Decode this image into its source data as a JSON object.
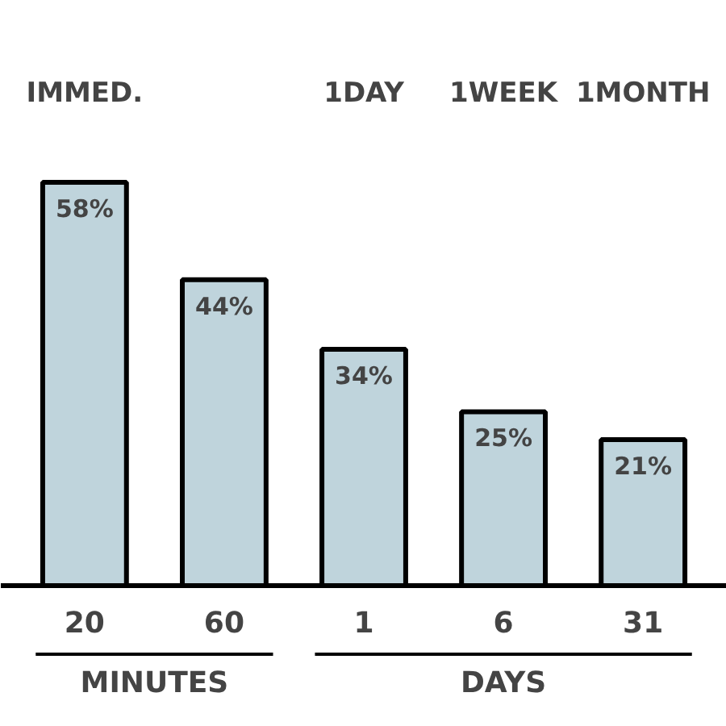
{
  "chart_data": {
    "type": "bar",
    "categories": [
      "20",
      "60",
      "1",
      "6",
      "31"
    ],
    "values": [
      58,
      44,
      34,
      25,
      21
    ],
    "color": "#bfd4dc",
    "data_labels": true,
    "value_labels": [
      "58%",
      "44%",
      "34%",
      "25%",
      "21%"
    ],
    "annotations": [
      "IMMED.",
      "1DAY",
      "1WEEK",
      "1MONTH",
      "MINUTES",
      "DAYS"
    ]
  }
}
